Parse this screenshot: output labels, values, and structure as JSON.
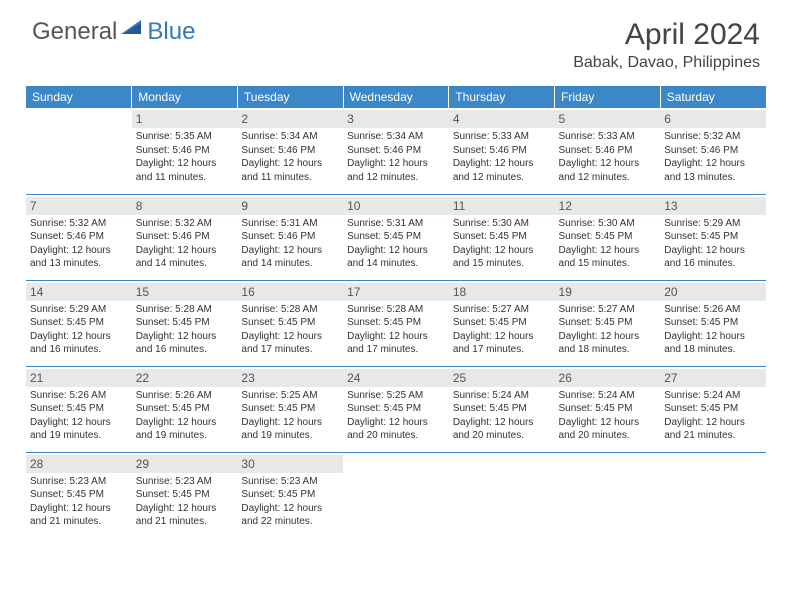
{
  "brand": {
    "part1": "General",
    "part2": "Blue"
  },
  "title": "April 2024",
  "location": "Babak, Davao, Philippines",
  "colors": {
    "header_bg": "#3b87c8",
    "header_fg": "#ffffff",
    "daynum_bg": "#e8e8e8",
    "text": "#333333",
    "brand_accent": "#3478bd"
  },
  "day_headers": [
    "Sunday",
    "Monday",
    "Tuesday",
    "Wednesday",
    "Thursday",
    "Friday",
    "Saturday"
  ],
  "weeks": [
    [
      null,
      {
        "n": "1",
        "sr": "5:35 AM",
        "ss": "5:46 PM",
        "dl": "12 hours and 11 minutes."
      },
      {
        "n": "2",
        "sr": "5:34 AM",
        "ss": "5:46 PM",
        "dl": "12 hours and 11 minutes."
      },
      {
        "n": "3",
        "sr": "5:34 AM",
        "ss": "5:46 PM",
        "dl": "12 hours and 12 minutes."
      },
      {
        "n": "4",
        "sr": "5:33 AM",
        "ss": "5:46 PM",
        "dl": "12 hours and 12 minutes."
      },
      {
        "n": "5",
        "sr": "5:33 AM",
        "ss": "5:46 PM",
        "dl": "12 hours and 12 minutes."
      },
      {
        "n": "6",
        "sr": "5:32 AM",
        "ss": "5:46 PM",
        "dl": "12 hours and 13 minutes."
      }
    ],
    [
      {
        "n": "7",
        "sr": "5:32 AM",
        "ss": "5:46 PM",
        "dl": "12 hours and 13 minutes."
      },
      {
        "n": "8",
        "sr": "5:32 AM",
        "ss": "5:46 PM",
        "dl": "12 hours and 14 minutes."
      },
      {
        "n": "9",
        "sr": "5:31 AM",
        "ss": "5:46 PM",
        "dl": "12 hours and 14 minutes."
      },
      {
        "n": "10",
        "sr": "5:31 AM",
        "ss": "5:45 PM",
        "dl": "12 hours and 14 minutes."
      },
      {
        "n": "11",
        "sr": "5:30 AM",
        "ss": "5:45 PM",
        "dl": "12 hours and 15 minutes."
      },
      {
        "n": "12",
        "sr": "5:30 AM",
        "ss": "5:45 PM",
        "dl": "12 hours and 15 minutes."
      },
      {
        "n": "13",
        "sr": "5:29 AM",
        "ss": "5:45 PM",
        "dl": "12 hours and 16 minutes."
      }
    ],
    [
      {
        "n": "14",
        "sr": "5:29 AM",
        "ss": "5:45 PM",
        "dl": "12 hours and 16 minutes."
      },
      {
        "n": "15",
        "sr": "5:28 AM",
        "ss": "5:45 PM",
        "dl": "12 hours and 16 minutes."
      },
      {
        "n": "16",
        "sr": "5:28 AM",
        "ss": "5:45 PM",
        "dl": "12 hours and 17 minutes."
      },
      {
        "n": "17",
        "sr": "5:28 AM",
        "ss": "5:45 PM",
        "dl": "12 hours and 17 minutes."
      },
      {
        "n": "18",
        "sr": "5:27 AM",
        "ss": "5:45 PM",
        "dl": "12 hours and 17 minutes."
      },
      {
        "n": "19",
        "sr": "5:27 AM",
        "ss": "5:45 PM",
        "dl": "12 hours and 18 minutes."
      },
      {
        "n": "20",
        "sr": "5:26 AM",
        "ss": "5:45 PM",
        "dl": "12 hours and 18 minutes."
      }
    ],
    [
      {
        "n": "21",
        "sr": "5:26 AM",
        "ss": "5:45 PM",
        "dl": "12 hours and 19 minutes."
      },
      {
        "n": "22",
        "sr": "5:26 AM",
        "ss": "5:45 PM",
        "dl": "12 hours and 19 minutes."
      },
      {
        "n": "23",
        "sr": "5:25 AM",
        "ss": "5:45 PM",
        "dl": "12 hours and 19 minutes."
      },
      {
        "n": "24",
        "sr": "5:25 AM",
        "ss": "5:45 PM",
        "dl": "12 hours and 20 minutes."
      },
      {
        "n": "25",
        "sr": "5:24 AM",
        "ss": "5:45 PM",
        "dl": "12 hours and 20 minutes."
      },
      {
        "n": "26",
        "sr": "5:24 AM",
        "ss": "5:45 PM",
        "dl": "12 hours and 20 minutes."
      },
      {
        "n": "27",
        "sr": "5:24 AM",
        "ss": "5:45 PM",
        "dl": "12 hours and 21 minutes."
      }
    ],
    [
      {
        "n": "28",
        "sr": "5:23 AM",
        "ss": "5:45 PM",
        "dl": "12 hours and 21 minutes."
      },
      {
        "n": "29",
        "sr": "5:23 AM",
        "ss": "5:45 PM",
        "dl": "12 hours and 21 minutes."
      },
      {
        "n": "30",
        "sr": "5:23 AM",
        "ss": "5:45 PM",
        "dl": "12 hours and 22 minutes."
      },
      null,
      null,
      null,
      null
    ]
  ],
  "labels": {
    "sunrise": "Sunrise: ",
    "sunset": "Sunset: ",
    "daylight": "Daylight: "
  }
}
